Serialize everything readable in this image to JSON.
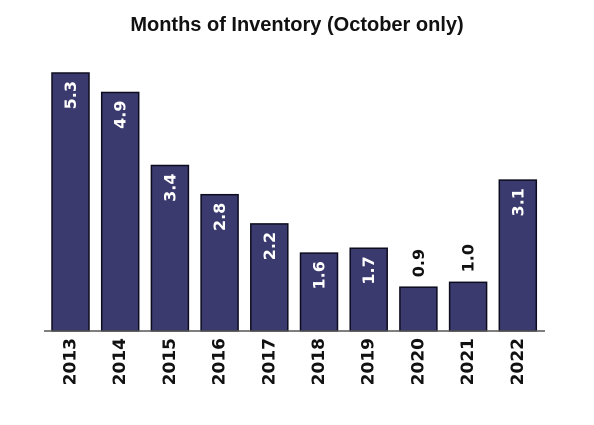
{
  "chart_data": {
    "type": "bar",
    "title": "Months of Inventory (October only)",
    "xlabel": "",
    "ylabel": "",
    "categories": [
      "2013",
      "2014",
      "2015",
      "2016",
      "2017",
      "2018",
      "2019",
      "2020",
      "2021",
      "2022"
    ],
    "values": [
      5.3,
      4.9,
      3.4,
      2.8,
      2.2,
      1.6,
      1.7,
      0.9,
      1.0,
      3.1
    ],
    "data_labels": [
      "5.3",
      "4.9",
      "3.4",
      "2.8",
      "2.2",
      "1.6",
      "1.7",
      "0.9",
      "1.0",
      "3.1"
    ],
    "ylim": [
      0,
      5.3
    ],
    "grid": false,
    "legend": "none",
    "colors": {
      "bar": "#3b3a6e",
      "bar_edge": "#0c0c1e",
      "label_inside": "#ffffff",
      "label_outside": "#111111"
    }
  }
}
